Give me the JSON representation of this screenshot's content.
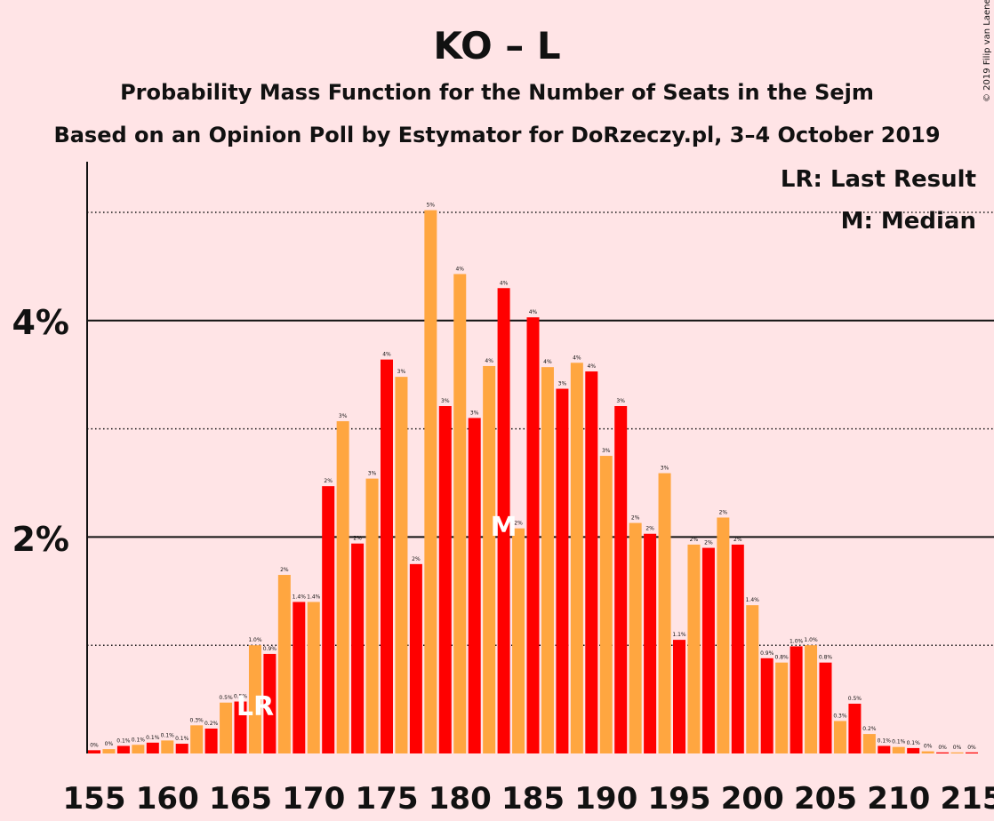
{
  "chart_data": {
    "type": "bar",
    "title": "KO – L",
    "subtitle": "Probability Mass Function for the Number of Seats in the Sejm",
    "subtitle2": "Based on an Opinion Poll by Estymator for DoRzeczy.pl, 3–4 October 2019",
    "copyright": "© 2019 Filip van Laenen",
    "legend": {
      "lr": "LR: Last Result",
      "m": "M: Median",
      "placement": "top-right"
    },
    "markers": {
      "last_result": {
        "seat": 166,
        "label": "LR"
      },
      "median": {
        "seat": 183,
        "label": "M"
      }
    },
    "x": [
      155,
      156,
      157,
      158,
      159,
      160,
      161,
      162,
      163,
      164,
      165,
      166,
      167,
      168,
      169,
      170,
      171,
      172,
      173,
      174,
      175,
      176,
      177,
      178,
      179,
      180,
      181,
      182,
      183,
      184,
      185,
      186,
      187,
      188,
      189,
      190,
      191,
      192,
      193,
      194,
      195,
      196,
      197,
      198,
      199,
      200,
      201,
      202,
      203,
      204,
      205,
      206,
      207,
      208,
      209,
      210,
      211,
      212,
      213,
      214,
      215
    ],
    "values": [
      0.03,
      0.04,
      0.07,
      0.08,
      0.1,
      0.12,
      0.09,
      0.26,
      0.23,
      0.47,
      0.48,
      1.0,
      0.92,
      1.65,
      1.4,
      1.4,
      2.47,
      3.07,
      1.94,
      2.54,
      3.64,
      3.48,
      1.75,
      5.02,
      3.21,
      4.43,
      3.1,
      3.58,
      4.3,
      2.08,
      4.03,
      3.57,
      3.37,
      3.61,
      3.53,
      2.75,
      3.21,
      2.13,
      2.03,
      2.59,
      1.05,
      1.93,
      1.9,
      2.18,
      1.93,
      1.37,
      0.88,
      0.84,
      0.99,
      1.0,
      0.84,
      0.3,
      0.46,
      0.18,
      0.07,
      0.06,
      0.05,
      0.02,
      0.01,
      0.01,
      0.01
    ],
    "labels": [
      "0%",
      "0%",
      "0.1%",
      "0.1%",
      "0.1%",
      "0.1%",
      "0.1%",
      "0.3%",
      "0.2%",
      "0.5%",
      "0.5%",
      "1.0%",
      "0.9%",
      "2%",
      "1.4%",
      "1.4%",
      "2%",
      "3%",
      "2%",
      "3%",
      "4%",
      "3%",
      "2%",
      "5%",
      "3%",
      "4%",
      "3%",
      "4%",
      "4%",
      "2%",
      "4%",
      "4%",
      "3%",
      "4%",
      "4%",
      "3%",
      "3%",
      "2%",
      "2%",
      "3%",
      "1.1%",
      "2%",
      "2%",
      "2%",
      "2%",
      "1.4%",
      "0.9%",
      "0.8%",
      "1.0%",
      "1.0%",
      "0.8%",
      "0.3%",
      "0.5%",
      "0.2%",
      "0.1%",
      "0.1%",
      "0.1%",
      "0%",
      "0%",
      "0%",
      "0%"
    ],
    "y_ticks": [
      "2%",
      "4%"
    ],
    "x_ticks": [
      "155",
      "160",
      "165",
      "170",
      "175",
      "180",
      "185",
      "190",
      "195",
      "200",
      "205",
      "210",
      "215"
    ],
    "ylim": [
      0,
      5.45
    ],
    "grid": "solid lines at 2% and 4%, dotted lines at 1%, 3% and 5%",
    "colors": {
      "background": "#ffe4e6",
      "bar_odd": "#ff0000",
      "bar_even": "#ffa640",
      "text": "#111111"
    }
  }
}
